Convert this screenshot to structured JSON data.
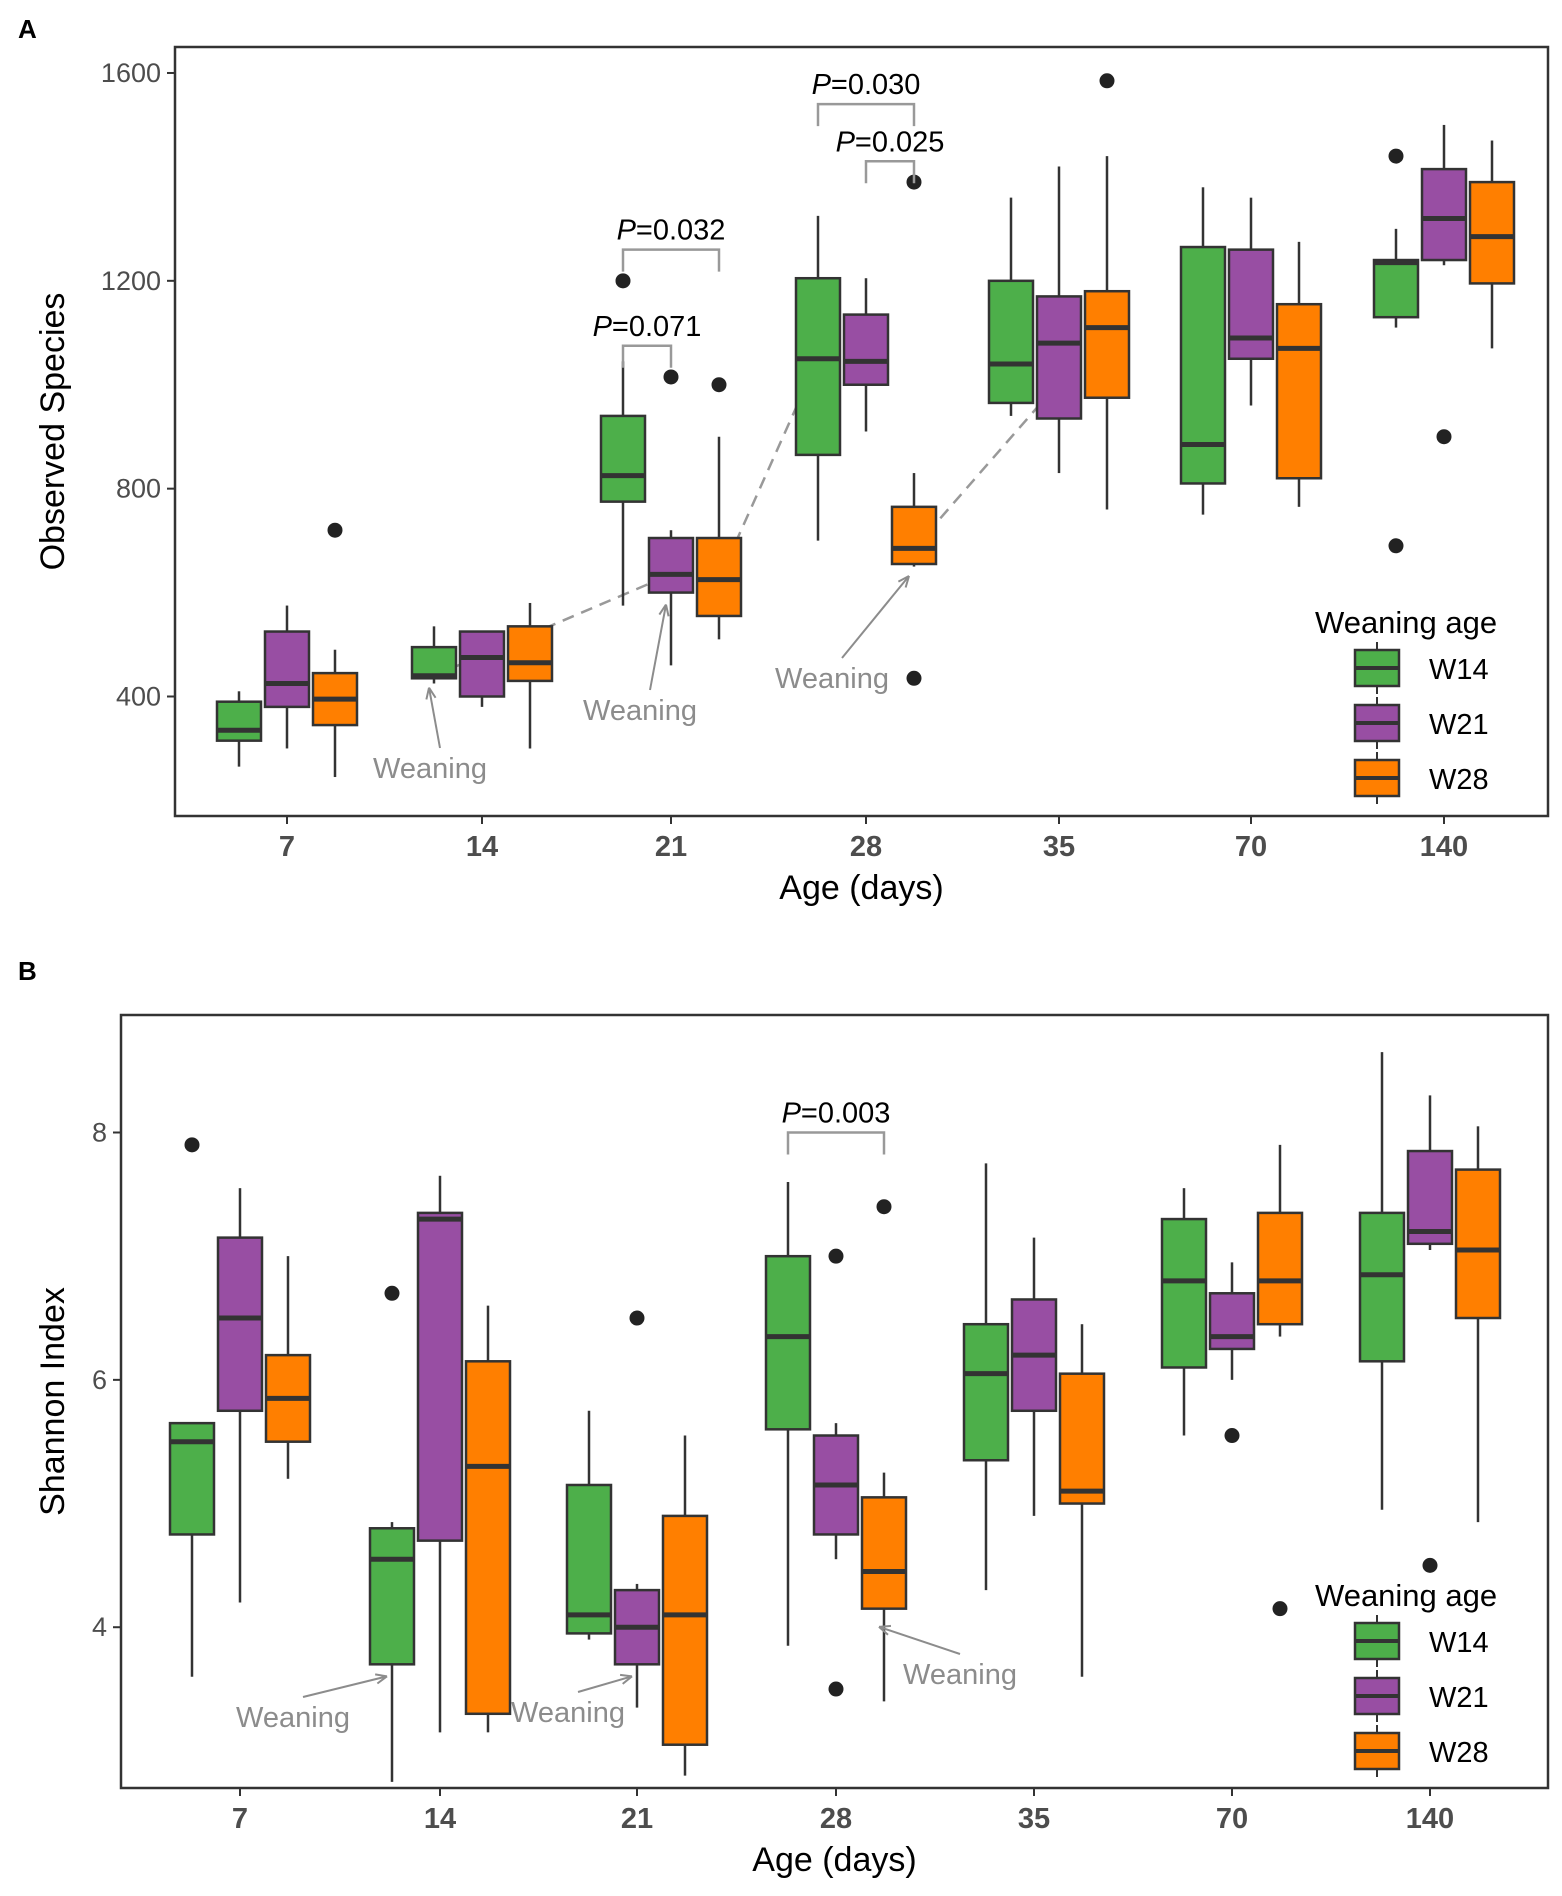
{
  "colors": {
    "W14": "#4daf4a",
    "W21": "#984ea3",
    "W28": "#ff7f00",
    "annotation": "#8c8c8c",
    "stroke": "#333333"
  },
  "chart_data": [
    {
      "panel": "A",
      "type": "boxplot",
      "xlabel": "Age (days)",
      "ylabel": "Observed Species",
      "ylim": [
        170,
        1650
      ],
      "yticks": [
        400,
        800,
        1200,
        1600
      ],
      "categories": [
        "7",
        "14",
        "21",
        "28",
        "35",
        "70",
        "140"
      ],
      "legend_title": "Weaning age",
      "legend_position": "bottom-right",
      "series": [
        {
          "name": "W14",
          "boxes": [
            {
              "low": 265,
              "q1": 315,
              "median": 335,
              "q3": 390,
              "high": 410,
              "outliers": []
            },
            {
              "low": 425,
              "q1": 435,
              "median": 440,
              "q3": 495,
              "high": 535,
              "outliers": []
            },
            {
              "low": 575,
              "q1": 775,
              "median": 825,
              "q3": 940,
              "high": 1045,
              "outliers": [
                1200
              ]
            },
            {
              "low": 700,
              "q1": 865,
              "median": 1050,
              "q3": 1205,
              "high": 1325,
              "outliers": []
            },
            {
              "low": 940,
              "q1": 965,
              "median": 1040,
              "q3": 1200,
              "high": 1360,
              "outliers": []
            },
            {
              "low": 750,
              "q1": 810,
              "median": 885,
              "q3": 1265,
              "high": 1380,
              "outliers": []
            },
            {
              "low": 1110,
              "q1": 1130,
              "median": 1235,
              "q3": 1240,
              "high": 1300,
              "outliers": [
                1440,
                690
              ]
            }
          ]
        },
        {
          "name": "W21",
          "boxes": [
            {
              "low": 300,
              "q1": 380,
              "median": 425,
              "q3": 525,
              "high": 575,
              "outliers": []
            },
            {
              "low": 380,
              "q1": 400,
              "median": 475,
              "q3": 525,
              "high": 525,
              "outliers": []
            },
            {
              "low": 460,
              "q1": 600,
              "median": 635,
              "q3": 705,
              "high": 720,
              "outliers": [
                1015
              ]
            },
            {
              "low": 910,
              "q1": 1000,
              "median": 1045,
              "q3": 1135,
              "high": 1205,
              "outliers": []
            },
            {
              "low": 830,
              "q1": 935,
              "median": 1080,
              "q3": 1170,
              "high": 1420,
              "outliers": []
            },
            {
              "low": 960,
              "q1": 1050,
              "median": 1090,
              "q3": 1260,
              "high": 1360,
              "outliers": []
            },
            {
              "low": 1230,
              "q1": 1240,
              "median": 1320,
              "q3": 1415,
              "high": 1500,
              "outliers": [
                900
              ]
            }
          ]
        },
        {
          "name": "W28",
          "boxes": [
            {
              "low": 245,
              "q1": 345,
              "median": 395,
              "q3": 445,
              "high": 490,
              "outliers": [
                720
              ]
            },
            {
              "low": 300,
              "q1": 430,
              "median": 465,
              "q3": 535,
              "high": 580,
              "outliers": []
            },
            {
              "low": 510,
              "q1": 555,
              "median": 625,
              "q3": 705,
              "high": 900,
              "outliers": [
                1000
              ]
            },
            {
              "low": 650,
              "q1": 655,
              "median": 685,
              "q3": 765,
              "high": 830,
              "outliers": [
                1390,
                435
              ]
            },
            {
              "low": 760,
              "q1": 975,
              "median": 1110,
              "q3": 1180,
              "high": 1440,
              "outliers": [
                1585
              ]
            },
            {
              "low": 765,
              "q1": 820,
              "median": 1070,
              "q3": 1155,
              "high": 1275,
              "outliers": []
            },
            {
              "low": 1070,
              "q1": 1195,
              "median": 1285,
              "q3": 1390,
              "high": 1470,
              "outliers": []
            }
          ]
        }
      ],
      "trend_lines": [
        {
          "from": {
            "category": "14",
            "series": "W14",
            "value": 440
          },
          "to": {
            "category": "21",
            "series": "W21",
            "value": 635
          }
        },
        {
          "from": {
            "category": "21",
            "series": "W28",
            "value": 625
          },
          "to": {
            "category": "28",
            "series": "W14",
            "value": 1050
          }
        },
        {
          "from": {
            "category": "28",
            "series": "W28",
            "value": 685
          },
          "to": {
            "category": "35",
            "series": "W28",
            "value": 1110
          }
        }
      ],
      "significance": [
        {
          "text": "P=0.032",
          "category": "21",
          "from": "W14",
          "to": "W28",
          "y": 1260
        },
        {
          "text": "P=0.071",
          "category": "21",
          "from": "W14",
          "to": "W21",
          "y": 1075
        },
        {
          "text": "P=0.030",
          "category": "28",
          "from": "W14",
          "to": "W28",
          "y": 1540
        },
        {
          "text": "P=0.025",
          "category": "28",
          "from": "W21",
          "to": "W28",
          "y": 1430
        }
      ],
      "weaning_labels": [
        {
          "text": "Weaning",
          "category": "14",
          "series": "W14",
          "value": 440
        },
        {
          "text": "Weaning",
          "category": "21",
          "series": "W21",
          "value": 600
        },
        {
          "text": "Weaning",
          "category": "28",
          "series": "W28",
          "value": 655
        }
      ]
    },
    {
      "panel": "B",
      "type": "boxplot",
      "xlabel": "Age (days)",
      "ylabel": "Shannon Index",
      "ylim": [
        2.7,
        8.95
      ],
      "yticks": [
        4,
        6,
        8
      ],
      "categories": [
        "7",
        "14",
        "21",
        "28",
        "35",
        "70",
        "140"
      ],
      "legend_title": "Weaning age",
      "legend_position": "bottom-right",
      "series": [
        {
          "name": "W14",
          "boxes": [
            {
              "low": 3.6,
              "q1": 4.75,
              "median": 5.5,
              "q3": 5.65,
              "high": 5.65,
              "outliers": [
                7.9
              ]
            },
            {
              "low": 2.75,
              "q1": 3.7,
              "median": 4.55,
              "q3": 4.8,
              "high": 4.85,
              "outliers": [
                6.7
              ]
            },
            {
              "low": 3.9,
              "q1": 3.95,
              "median": 4.1,
              "q3": 5.15,
              "high": 5.75,
              "outliers": []
            },
            {
              "low": 3.85,
              "q1": 5.6,
              "median": 6.35,
              "q3": 7.0,
              "high": 7.6,
              "outliers": []
            },
            {
              "low": 4.3,
              "q1": 5.35,
              "median": 6.05,
              "q3": 6.45,
              "high": 7.75,
              "outliers": []
            },
            {
              "low": 5.55,
              "q1": 6.1,
              "median": 6.8,
              "q3": 7.3,
              "high": 7.55,
              "outliers": []
            },
            {
              "low": 4.95,
              "q1": 6.15,
              "median": 6.85,
              "q3": 7.35,
              "high": 8.65,
              "outliers": []
            }
          ]
        },
        {
          "name": "W21",
          "boxes": [
            {
              "low": 4.2,
              "q1": 5.75,
              "median": 6.5,
              "q3": 7.15,
              "high": 7.55,
              "outliers": []
            },
            {
              "low": 3.15,
              "q1": 4.7,
              "median": 7.3,
              "q3": 7.35,
              "high": 7.65,
              "outliers": []
            },
            {
              "low": 3.35,
              "q1": 3.7,
              "median": 4.0,
              "q3": 4.3,
              "high": 4.35,
              "outliers": [
                6.5
              ]
            },
            {
              "low": 4.55,
              "q1": 4.75,
              "median": 5.15,
              "q3": 5.55,
              "high": 5.65,
              "outliers": [
                7.0,
                3.5
              ]
            },
            {
              "low": 4.9,
              "q1": 5.75,
              "median": 6.2,
              "q3": 6.65,
              "high": 7.15,
              "outliers": []
            },
            {
              "low": 6.0,
              "q1": 6.25,
              "median": 6.35,
              "q3": 6.7,
              "high": 6.95,
              "outliers": [
                5.55
              ]
            },
            {
              "low": 7.05,
              "q1": 7.1,
              "median": 7.2,
              "q3": 7.85,
              "high": 8.3,
              "outliers": [
                4.5
              ]
            }
          ]
        },
        {
          "name": "W28",
          "boxes": [
            {
              "low": 5.2,
              "q1": 5.5,
              "median": 5.85,
              "q3": 6.2,
              "high": 7.0,
              "outliers": []
            },
            {
              "low": 3.15,
              "q1": 3.3,
              "median": 5.3,
              "q3": 6.15,
              "high": 6.6,
              "outliers": []
            },
            {
              "low": 2.8,
              "q1": 3.05,
              "median": 4.1,
              "q3": 4.9,
              "high": 5.55,
              "outliers": []
            },
            {
              "low": 3.4,
              "q1": 4.15,
              "median": 4.45,
              "q3": 5.05,
              "high": 5.25,
              "outliers": [
                7.4
              ]
            },
            {
              "low": 3.6,
              "q1": 5.0,
              "median": 5.1,
              "q3": 6.05,
              "high": 6.45,
              "outliers": []
            },
            {
              "low": 6.35,
              "q1": 6.45,
              "median": 6.8,
              "q3": 7.35,
              "high": 7.9,
              "outliers": [
                4.15
              ]
            },
            {
              "low": 4.85,
              "q1": 6.5,
              "median": 7.05,
              "q3": 7.7,
              "high": 8.05,
              "outliers": []
            }
          ]
        }
      ],
      "trend_lines": [],
      "significance": [
        {
          "text": "P=0.003",
          "category": "28",
          "from": "W14",
          "to": "W28",
          "y": 8.0
        }
      ],
      "weaning_labels": [
        {
          "text": "Weaning",
          "category": "14",
          "series": "W14",
          "value": 3.7
        },
        {
          "text": "Weaning",
          "category": "21",
          "series": "W21",
          "value": 3.7
        },
        {
          "text": "Weaning",
          "category": "28",
          "series": "W28",
          "value": 4.1
        }
      ]
    }
  ]
}
